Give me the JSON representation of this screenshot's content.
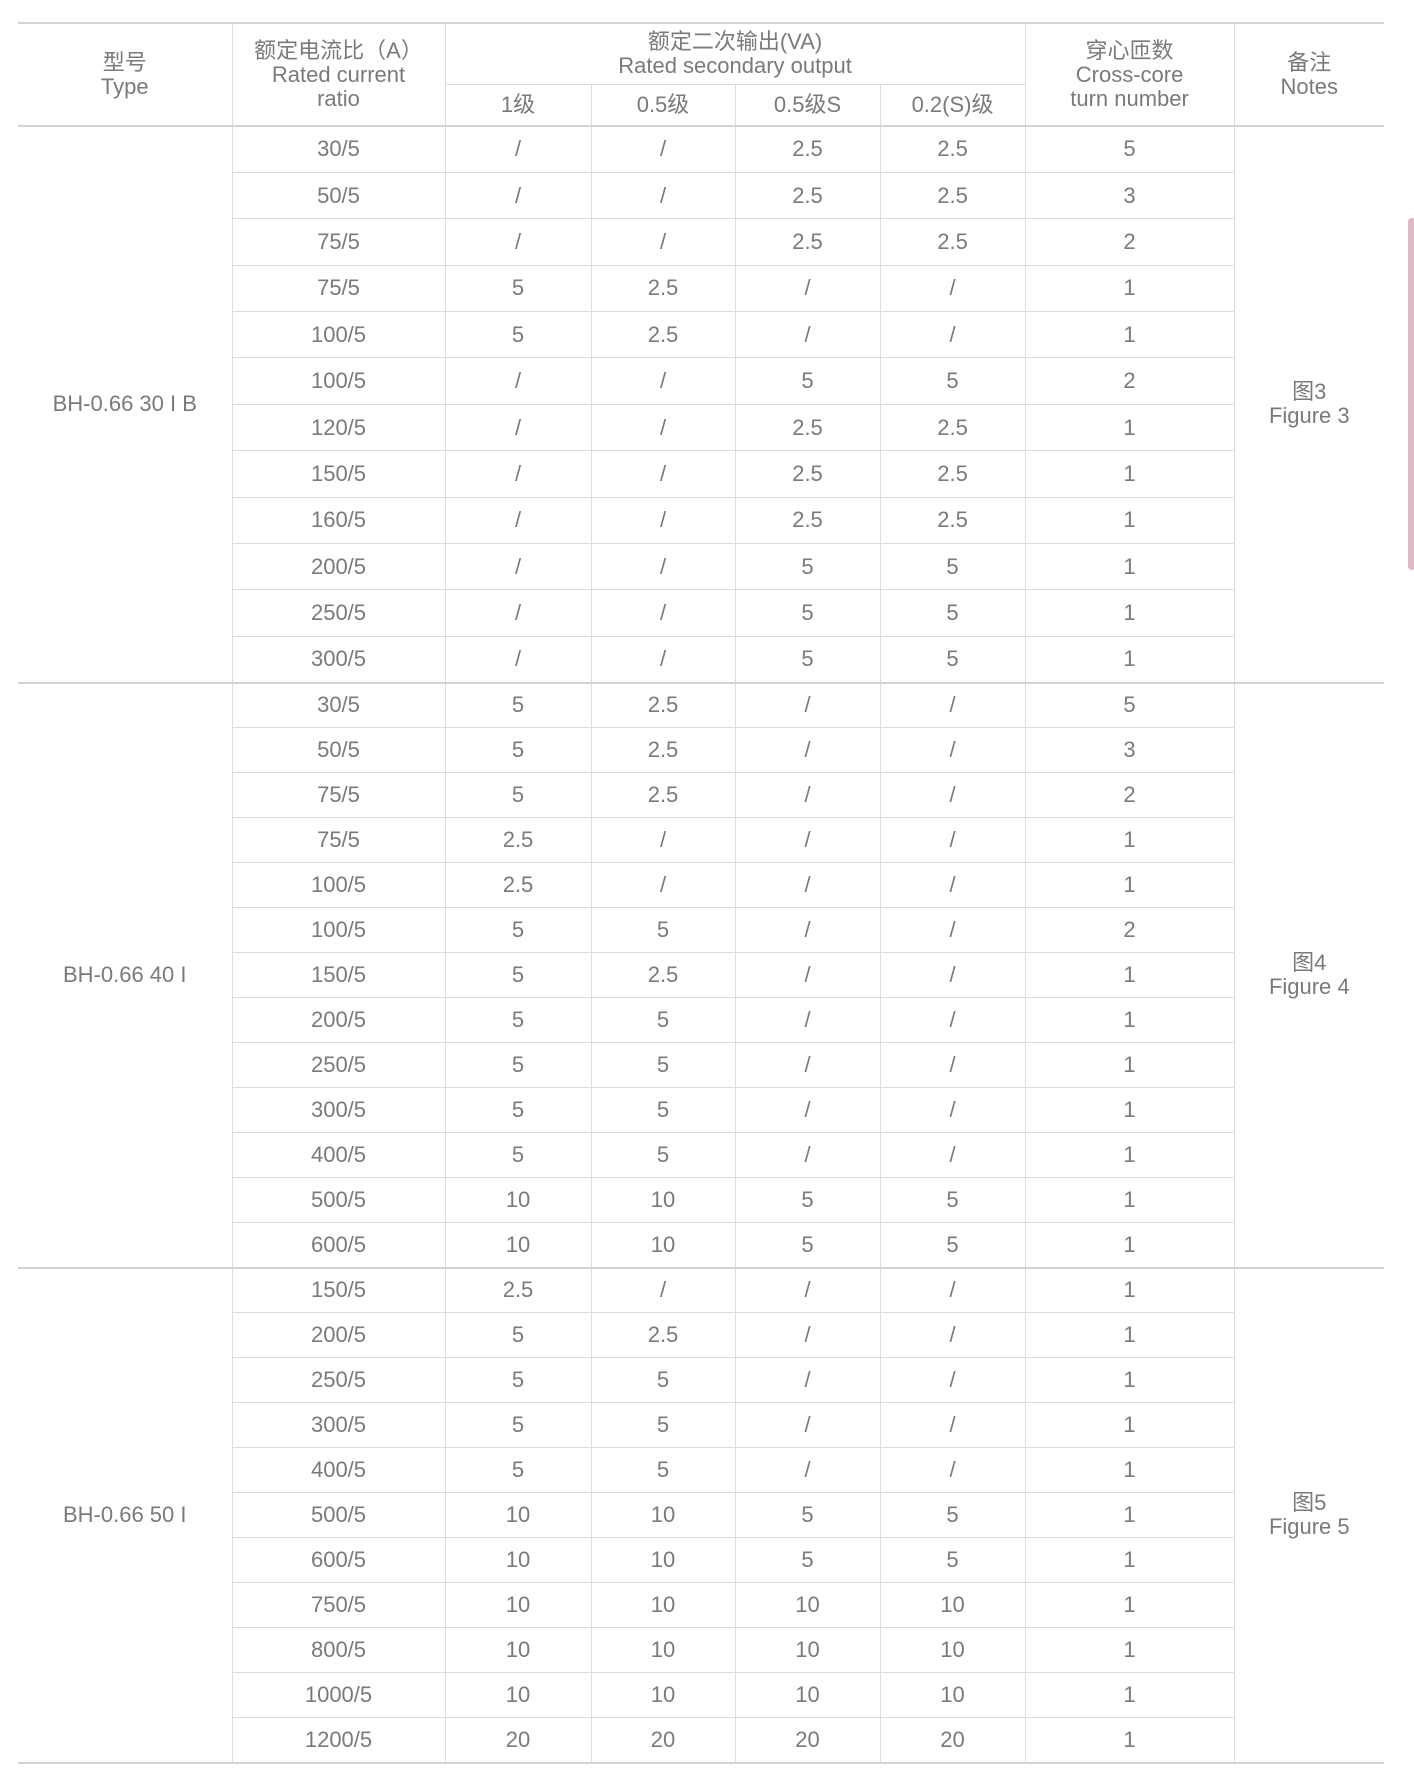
{
  "header": {
    "type_cn": "型号",
    "type_en": "Type",
    "ratio_cn": "额定电流比（A）",
    "ratio_en": "Rated current ratio",
    "output_cn": "额定二次输出(VA)",
    "output_en": "Rated secondary output",
    "classes": [
      "1级",
      "0.5级",
      "0.5级S",
      "0.2(S)级"
    ],
    "turns_cn": "穿心匝数",
    "turns_en": "Cross-core turn number",
    "notes_cn": "备注",
    "notes_en": "Notes"
  },
  "colors": {
    "text": "#7a7a7a",
    "group_line": "#dccfd4",
    "row_line": "#dddddd",
    "side_bar": "#e0b8c8"
  },
  "groups": [
    {
      "model": "BH-0.66 30 I B",
      "note_cn": "图3",
      "note_en": "Figure 3",
      "rows": [
        [
          "30/5",
          "/",
          "/",
          "2.5",
          "2.5",
          "5"
        ],
        [
          "50/5",
          "/",
          "/",
          "2.5",
          "2.5",
          "3"
        ],
        [
          "75/5",
          "/",
          "/",
          "2.5",
          "2.5",
          "2"
        ],
        [
          "75/5",
          "5",
          "2.5",
          "/",
          "/",
          "1"
        ],
        [
          "100/5",
          "5",
          "2.5",
          "/",
          "/",
          "1"
        ],
        [
          "100/5",
          "/",
          "/",
          "5",
          "5",
          "2"
        ],
        [
          "120/5",
          "/",
          "/",
          "2.5",
          "2.5",
          "1"
        ],
        [
          "150/5",
          "/",
          "/",
          "2.5",
          "2.5",
          "1"
        ],
        [
          "160/5",
          "/",
          "/",
          "2.5",
          "2.5",
          "1"
        ],
        [
          "200/5",
          "/",
          "/",
          "5",
          "5",
          "1"
        ],
        [
          "250/5",
          "/",
          "/",
          "5",
          "5",
          "1"
        ],
        [
          "300/5",
          "/",
          "/",
          "5",
          "5",
          "1"
        ]
      ]
    },
    {
      "model": "BH-0.66 40 I",
      "note_cn": "图4",
      "note_en": "Figure 4",
      "rows": [
        [
          "30/5",
          "5",
          "2.5",
          "/",
          "/",
          "5"
        ],
        [
          "50/5",
          "5",
          "2.5",
          "/",
          "/",
          "3"
        ],
        [
          "75/5",
          "5",
          "2.5",
          "/",
          "/",
          "2"
        ],
        [
          "75/5",
          "2.5",
          "/",
          "/",
          "/",
          "1"
        ],
        [
          "100/5",
          "2.5",
          "/",
          "/",
          "/",
          "1"
        ],
        [
          "100/5",
          "5",
          "5",
          "/",
          "/",
          "2"
        ],
        [
          "150/5",
          "5",
          "2.5",
          "/",
          "/",
          "1"
        ],
        [
          "200/5",
          "5",
          "5",
          "/",
          "/",
          "1"
        ],
        [
          "250/5",
          "5",
          "5",
          "/",
          "/",
          "1"
        ],
        [
          "300/5",
          "5",
          "5",
          "/",
          "/",
          "1"
        ],
        [
          "400/5",
          "5",
          "5",
          "/",
          "/",
          "1"
        ],
        [
          "500/5",
          "10",
          "10",
          "5",
          "5",
          "1"
        ],
        [
          "600/5",
          "10",
          "10",
          "5",
          "5",
          "1"
        ]
      ]
    },
    {
      "model": "BH-0.66 50 I",
      "note_cn": "图5",
      "note_en": "Figure 5",
      "rows": [
        [
          "150/5",
          "2.5",
          "/",
          "/",
          "/",
          "1"
        ],
        [
          "200/5",
          "5",
          "2.5",
          "/",
          "/",
          "1"
        ],
        [
          "250/5",
          "5",
          "5",
          "/",
          "/",
          "1"
        ],
        [
          "300/5",
          "5",
          "5",
          "/",
          "/",
          "1"
        ],
        [
          "400/5",
          "5",
          "5",
          "/",
          "/",
          "1"
        ],
        [
          "500/5",
          "10",
          "10",
          "5",
          "5",
          "1"
        ],
        [
          "600/5",
          "10",
          "10",
          "5",
          "5",
          "1"
        ],
        [
          "750/5",
          "10",
          "10",
          "10",
          "10",
          "1"
        ],
        [
          "800/5",
          "10",
          "10",
          "10",
          "10",
          "1"
        ],
        [
          "1000/5",
          "10",
          "10",
          "10",
          "10",
          "1"
        ],
        [
          "1200/5",
          "20",
          "20",
          "20",
          "20",
          "1"
        ]
      ]
    }
  ]
}
